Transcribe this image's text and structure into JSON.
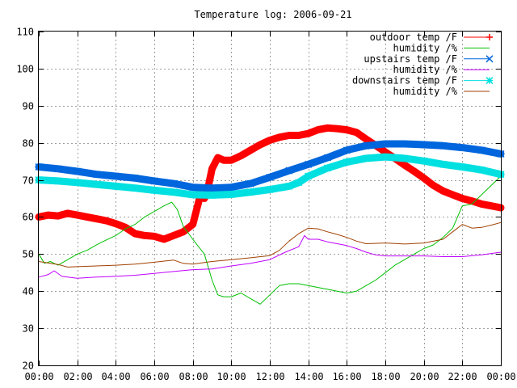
{
  "chart_data": {
    "type": "line",
    "title": "Temperature log: 2006-09-21",
    "xlabel": "",
    "ylabel": "",
    "xlim": [
      0,
      24
    ],
    "ylim": [
      20,
      110
    ],
    "grid": true,
    "legend_position": "top-right",
    "x_ticks": [
      {
        "v": 0,
        "label": "00:00"
      },
      {
        "v": 2,
        "label": "02:00"
      },
      {
        "v": 4,
        "label": "04:00"
      },
      {
        "v": 6,
        "label": "06:00"
      },
      {
        "v": 8,
        "label": "08:00"
      },
      {
        "v": 10,
        "label": "10:00"
      },
      {
        "v": 12,
        "label": "12:00"
      },
      {
        "v": 14,
        "label": "14:00"
      },
      {
        "v": 16,
        "label": "16:00"
      },
      {
        "v": 18,
        "label": "18:00"
      },
      {
        "v": 20,
        "label": "20:00"
      },
      {
        "v": 22,
        "label": "22:00"
      },
      {
        "v": 24,
        "label": "00:00"
      }
    ],
    "y_ticks": [
      {
        "v": 20,
        "label": "20"
      },
      {
        "v": 30,
        "label": "30"
      },
      {
        "v": 40,
        "label": "40"
      },
      {
        "v": 50,
        "label": "50"
      },
      {
        "v": 60,
        "label": "60"
      },
      {
        "v": 70,
        "label": "70"
      },
      {
        "v": 80,
        "label": "80"
      },
      {
        "v": 90,
        "label": "90"
      },
      {
        "v": 100,
        "label": "100"
      },
      {
        "v": 110,
        "label": "110"
      }
    ],
    "series": [
      {
        "name": "outdoor temp /F",
        "color": "#ff0000",
        "marker": "plus",
        "points": [
          [
            0,
            60
          ],
          [
            0.5,
            60.5
          ],
          [
            1,
            60.3
          ],
          [
            1.5,
            61
          ],
          [
            2,
            60.5
          ],
          [
            2.5,
            60
          ],
          [
            3,
            59.5
          ],
          [
            3.5,
            59
          ],
          [
            4,
            58.2
          ],
          [
            4.5,
            57.2
          ],
          [
            5,
            55.5
          ],
          [
            5.5,
            55
          ],
          [
            6,
            54.8
          ],
          [
            6.5,
            54
          ],
          [
            7,
            55
          ],
          [
            7.5,
            56
          ],
          [
            8,
            58
          ],
          [
            8.2,
            62
          ],
          [
            8.4,
            66
          ],
          [
            8.6,
            65
          ],
          [
            8.8,
            68
          ],
          [
            9,
            73
          ],
          [
            9.3,
            76
          ],
          [
            9.6,
            75.3
          ],
          [
            10,
            75.3
          ],
          [
            10.5,
            76.5
          ],
          [
            11,
            78
          ],
          [
            11.5,
            79.5
          ],
          [
            12,
            80.7
          ],
          [
            12.5,
            81.5
          ],
          [
            13,
            82
          ],
          [
            13.5,
            82
          ],
          [
            14,
            82.5
          ],
          [
            14.5,
            83.5
          ],
          [
            15,
            84
          ],
          [
            15.5,
            83.8
          ],
          [
            16,
            83.5
          ],
          [
            16.5,
            82.8
          ],
          [
            17,
            81
          ],
          [
            17.5,
            79.3
          ],
          [
            18,
            77.5
          ],
          [
            18.5,
            75.8
          ],
          [
            19,
            74
          ],
          [
            19.5,
            72.3
          ],
          [
            20,
            70.5
          ],
          [
            20.5,
            68.5
          ],
          [
            21,
            67
          ],
          [
            21.5,
            66
          ],
          [
            22,
            65
          ],
          [
            22.5,
            64.3
          ],
          [
            23,
            63.5
          ],
          [
            23.5,
            63
          ],
          [
            24,
            62.5
          ]
        ]
      },
      {
        "name": "humidity /%",
        "color": "#00c000",
        "marker": "none",
        "points": [
          [
            0,
            50
          ],
          [
            0.3,
            47.5
          ],
          [
            0.6,
            48
          ],
          [
            1,
            47
          ],
          [
            1.5,
            48.5
          ],
          [
            2,
            50
          ],
          [
            2.5,
            51
          ],
          [
            3,
            52.5
          ],
          [
            3.5,
            53.8
          ],
          [
            4,
            55
          ],
          [
            4.5,
            56.8
          ],
          [
            5,
            58
          ],
          [
            5.5,
            60
          ],
          [
            6,
            61.5
          ],
          [
            6.5,
            63
          ],
          [
            6.9,
            64
          ],
          [
            7.2,
            62
          ],
          [
            7.5,
            57.5
          ],
          [
            8,
            54
          ],
          [
            8.3,
            52
          ],
          [
            8.6,
            50
          ],
          [
            9,
            43
          ],
          [
            9.3,
            39
          ],
          [
            9.6,
            38.5
          ],
          [
            10,
            38.5
          ],
          [
            10.5,
            39.5
          ],
          [
            11,
            38
          ],
          [
            11.5,
            36.5
          ],
          [
            12,
            39
          ],
          [
            12.5,
            41.5
          ],
          [
            13,
            42
          ],
          [
            13.5,
            42
          ],
          [
            14,
            41.5
          ],
          [
            14.5,
            41
          ],
          [
            15,
            40.5
          ],
          [
            15.5,
            40
          ],
          [
            16,
            39.5
          ],
          [
            16.5,
            40
          ],
          [
            17,
            41.5
          ],
          [
            17.5,
            43
          ],
          [
            18,
            45
          ],
          [
            18.5,
            47
          ],
          [
            19,
            48.5
          ],
          [
            19.5,
            50
          ],
          [
            20,
            51.5
          ],
          [
            20.5,
            52.5
          ],
          [
            21,
            54.5
          ],
          [
            21.5,
            57
          ],
          [
            22,
            63
          ],
          [
            22.5,
            63.5
          ],
          [
            23,
            66
          ],
          [
            23.5,
            68.5
          ],
          [
            24,
            71
          ]
        ]
      },
      {
        "name": "upstairs temp /F",
        "color": "#0066dd",
        "marker": "cross",
        "points": [
          [
            0,
            73.5
          ],
          [
            1,
            73
          ],
          [
            2,
            72.3
          ],
          [
            3,
            71.5
          ],
          [
            4,
            71
          ],
          [
            5,
            70.5
          ],
          [
            6,
            69.7
          ],
          [
            7,
            69
          ],
          [
            8,
            68
          ],
          [
            9,
            67.8
          ],
          [
            10,
            68
          ],
          [
            11,
            69
          ],
          [
            12,
            70.7
          ],
          [
            13,
            72.5
          ],
          [
            14,
            74.2
          ],
          [
            15,
            76
          ],
          [
            16,
            78
          ],
          [
            17,
            79.2
          ],
          [
            18,
            79.7
          ],
          [
            19,
            79.7
          ],
          [
            20,
            79.5
          ],
          [
            21,
            79.2
          ],
          [
            22,
            78.7
          ],
          [
            23,
            78
          ],
          [
            24,
            77
          ]
        ]
      },
      {
        "name": "humidity /%",
        "color": "#c000ff",
        "marker": "none",
        "points": [
          [
            0,
            43.8
          ],
          [
            0.5,
            44.5
          ],
          [
            0.8,
            45.5
          ],
          [
            1.2,
            44
          ],
          [
            2,
            43.5
          ],
          [
            3,
            43.8
          ],
          [
            4,
            44
          ],
          [
            5,
            44.3
          ],
          [
            6,
            44.8
          ],
          [
            7,
            45.3
          ],
          [
            8,
            45.8
          ],
          [
            9,
            46
          ],
          [
            10,
            46.8
          ],
          [
            11,
            47.5
          ],
          [
            12,
            48.5
          ],
          [
            12.8,
            50.5
          ],
          [
            13.5,
            52
          ],
          [
            13.8,
            55
          ],
          [
            14,
            54
          ],
          [
            14.5,
            54
          ],
          [
            15,
            53.3
          ],
          [
            15.5,
            52.8
          ],
          [
            16,
            52.3
          ],
          [
            16.5,
            51.5
          ],
          [
            17,
            50.5
          ],
          [
            17.5,
            49.8
          ],
          [
            18,
            49.5
          ],
          [
            19,
            49.5
          ],
          [
            20,
            49.5
          ],
          [
            21,
            49.3
          ],
          [
            22,
            49.3
          ],
          [
            23,
            49.8
          ],
          [
            24,
            50.5
          ]
        ]
      },
      {
        "name": "downstairs temp /F",
        "color": "#00e0e0",
        "marker": "star",
        "points": [
          [
            0,
            70
          ],
          [
            1,
            69.7
          ],
          [
            2,
            69.3
          ],
          [
            3,
            68.8
          ],
          [
            4,
            68.3
          ],
          [
            5,
            67.8
          ],
          [
            6,
            67.2
          ],
          [
            7,
            66.7
          ],
          [
            8,
            66
          ],
          [
            9,
            65.9
          ],
          [
            10,
            66.1
          ],
          [
            11,
            66.7
          ],
          [
            12,
            67.4
          ],
          [
            13,
            68.3
          ],
          [
            13.5,
            69.3
          ],
          [
            14,
            71
          ],
          [
            15,
            73.2
          ],
          [
            16,
            74.8
          ],
          [
            17,
            75.8
          ],
          [
            18,
            76.2
          ],
          [
            19,
            75.8
          ],
          [
            20,
            75.1
          ],
          [
            21,
            74.2
          ],
          [
            22,
            73.5
          ],
          [
            23,
            72.7
          ],
          [
            24,
            71.5
          ]
        ]
      },
      {
        "name": "humidity /%",
        "color": "#a04000",
        "marker": "none",
        "points": [
          [
            0,
            48
          ],
          [
            1,
            47.2
          ],
          [
            1.5,
            46.5
          ],
          [
            2,
            46.6
          ],
          [
            3,
            46.8
          ],
          [
            4,
            47
          ],
          [
            5,
            47.3
          ],
          [
            6,
            47.8
          ],
          [
            7,
            48.4
          ],
          [
            7.5,
            47.5
          ],
          [
            8,
            47.3
          ],
          [
            9,
            48
          ],
          [
            10,
            48.5
          ],
          [
            11,
            49
          ],
          [
            12,
            49.6
          ],
          [
            12.5,
            51
          ],
          [
            13,
            53.5
          ],
          [
            13.5,
            55.5
          ],
          [
            14,
            57
          ],
          [
            14.5,
            56.8
          ],
          [
            15,
            56
          ],
          [
            15.5,
            55.3
          ],
          [
            16,
            54.5
          ],
          [
            16.5,
            53.5
          ],
          [
            17,
            52.8
          ],
          [
            18,
            53
          ],
          [
            19,
            52.7
          ],
          [
            20,
            53
          ],
          [
            21,
            54
          ],
          [
            21.5,
            56
          ],
          [
            22,
            58
          ],
          [
            22.5,
            57
          ],
          [
            23,
            57.2
          ],
          [
            23.5,
            57.8
          ],
          [
            24,
            58.5
          ]
        ]
      }
    ]
  }
}
